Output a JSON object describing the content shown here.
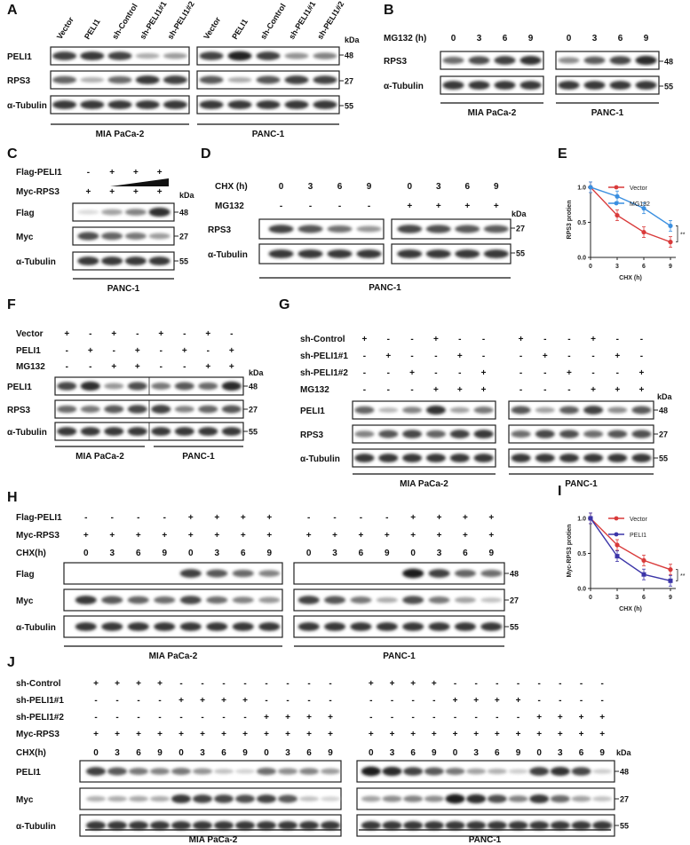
{
  "figure": {
    "A": {
      "letter": "A",
      "lanes": [
        "Vector",
        "PELI1",
        "sh-Control",
        "sh-PELI1#1",
        "sh-PELI1#2"
      ],
      "rows": [
        "PELI1",
        "RPS3",
        "α-Tubulin"
      ],
      "kda_label": "kDa",
      "markers": [
        "48",
        "27",
        "55"
      ],
      "groups": [
        "MIA PaCa-2",
        "PANC-1"
      ]
    },
    "B": {
      "letter": "B",
      "treatment": "MG132 (h)",
      "timepoints": [
        "0",
        "3",
        "6",
        "9"
      ],
      "rows": [
        "RPS3",
        "α-Tubulin"
      ],
      "markers": [
        "48",
        "55"
      ],
      "groups": [
        "MIA PaCa-2",
        "PANC-1"
      ]
    },
    "C": {
      "letter": "C",
      "row_labels": [
        "Flag-PELI1",
        "Myc-RPS3"
      ],
      "flag_signs": [
        "-",
        "+",
        "+",
        "+"
      ],
      "myc_signs": [
        "+",
        "+",
        "+",
        "+"
      ],
      "rows": [
        "Flag",
        "Myc",
        "α-Tubulin"
      ],
      "kda_label": "kDa",
      "markers": [
        "48",
        "27",
        "55"
      ],
      "group": "PANC-1"
    },
    "D": {
      "letter": "D",
      "treatment": "CHX (h)",
      "timepoints": [
        "0",
        "3",
        "6",
        "9"
      ],
      "mg132_label": "MG132",
      "mg132_signs": [
        "-",
        "-",
        "-",
        "-",
        "+",
        "+",
        "+",
        "+"
      ],
      "rows": [
        "RPS3",
        "α-Tubulin"
      ],
      "kda_label": "kDa",
      "markers": [
        "27",
        "55"
      ],
      "group": "PANC-1"
    },
    "F": {
      "letter": "F",
      "row_labels": [
        "Vector",
        "PELI1",
        "MG132"
      ],
      "vector_signs": [
        "+",
        "-",
        "+",
        "-",
        "+",
        "-",
        "+",
        "-"
      ],
      "peli1_signs": [
        "-",
        "+",
        "-",
        "+",
        "-",
        "+",
        "-",
        "+"
      ],
      "mg132_signs": [
        "-",
        "-",
        "+",
        "+",
        "-",
        "-",
        "+",
        "+"
      ],
      "rows": [
        "PELI1",
        "RPS3",
        "α-Tubulin"
      ],
      "kda_label": "kDa",
      "markers": [
        "48",
        "27",
        "55"
      ],
      "groups": [
        "MIA PaCa-2",
        "PANC-1"
      ]
    },
    "G": {
      "letter": "G",
      "row_labels": [
        "sh-Control",
        "sh-PELI1#1",
        "sh-PELI1#2",
        "MG132"
      ],
      "shc_signs": [
        "+",
        "-",
        "-",
        "+",
        "-",
        "-"
      ],
      "sh1_signs": [
        "-",
        "+",
        "-",
        "-",
        "+",
        "-"
      ],
      "sh2_signs": [
        "-",
        "-",
        "+",
        "-",
        "-",
        "+"
      ],
      "mg132_signs": [
        "-",
        "-",
        "-",
        "+",
        "+",
        "+"
      ],
      "rows": [
        "PELI1",
        "RPS3",
        "α-Tubulin"
      ],
      "kda_label": "kDa",
      "markers": [
        "48",
        "27",
        "55"
      ],
      "groups": [
        "MIA PaCa-2",
        "PANC-1"
      ]
    },
    "H": {
      "letter": "H",
      "row_labels": [
        "Flag-PELI1",
        "Myc-RPS3",
        "CHX(h)"
      ],
      "flag_signs": [
        "-",
        "-",
        "-",
        "-",
        "+",
        "+",
        "+",
        "+"
      ],
      "myc_signs": [
        "+",
        "+",
        "+",
        "+",
        "+",
        "+",
        "+",
        "+"
      ],
      "chx": [
        "0",
        "3",
        "6",
        "9",
        "0",
        "3",
        "6",
        "9"
      ],
      "rows": [
        "Flag",
        "Myc",
        "α-Tubulin"
      ],
      "markers": [
        "48",
        "27",
        "55"
      ],
      "groups": [
        "MIA PaCa-2",
        "PANC-1"
      ]
    },
    "J": {
      "letter": "J",
      "row_labels": [
        "sh-Control",
        "sh-PELI1#1",
        "sh-PELI1#2",
        "Myc-RPS3",
        "CHX(h)"
      ],
      "shc_signs": [
        "+",
        "+",
        "+",
        "+",
        "-",
        "-",
        "-",
        "-",
        "-",
        "-",
        "-",
        "-"
      ],
      "sh1_signs": [
        "-",
        "-",
        "-",
        "-",
        "+",
        "+",
        "+",
        "+",
        "-",
        "-",
        "-",
        "-"
      ],
      "sh2_signs": [
        "-",
        "-",
        "-",
        "-",
        "-",
        "-",
        "-",
        "-",
        "+",
        "+",
        "+",
        "+"
      ],
      "myc_signs": [
        "+",
        "+",
        "+",
        "+",
        "+",
        "+",
        "+",
        "+",
        "+",
        "+",
        "+",
        "+"
      ],
      "chx": [
        "0",
        "3",
        "6",
        "9",
        "0",
        "3",
        "6",
        "9",
        "0",
        "3",
        "6",
        "9"
      ],
      "rows": [
        "PELI1",
        "Myc",
        "α-Tubulin"
      ],
      "kda_label": "kDa",
      "markers": [
        "48",
        "27",
        "55"
      ],
      "groups": [
        "MIA PaCa-2",
        "PANC-1"
      ]
    }
  },
  "chart_data": [
    {
      "panel": "E",
      "type": "line",
      "x": [
        0,
        3,
        6,
        9
      ],
      "xlabel": "CHX (h)",
      "ylabel": "RPS3 protien",
      "ylim": [
        0,
        1.0
      ],
      "yticks": [
        "0.0",
        "0.5",
        "1.0"
      ],
      "xticks": [
        "0",
        "3",
        "6",
        "9"
      ],
      "series": [
        {
          "name": "Vector",
          "values": [
            1.0,
            0.6,
            0.36,
            0.22
          ],
          "color": "#d93a3a"
        },
        {
          "name": "MG132",
          "values": [
            1.0,
            0.87,
            0.7,
            0.45
          ],
          "color": "#3a8fe0"
        }
      ],
      "significance": "**",
      "legend": "top-right"
    },
    {
      "panel": "I",
      "type": "line",
      "x": [
        0,
        3,
        6,
        9
      ],
      "xlabel": "CHX (h)",
      "ylabel": "Myc-RPS3 protien",
      "ylim": [
        0,
        1.0
      ],
      "yticks": [
        "0.0",
        "0.5",
        "1.0"
      ],
      "xticks": [
        "0",
        "3",
        "6",
        "9"
      ],
      "series": [
        {
          "name": "Vector",
          "values": [
            1.0,
            0.62,
            0.4,
            0.27
          ],
          "color": "#d93a3a"
        },
        {
          "name": "PELI1",
          "values": [
            1.0,
            0.46,
            0.2,
            0.11
          ],
          "color": "#3b35a8"
        }
      ],
      "significance": "**",
      "legend": "top-right"
    }
  ]
}
